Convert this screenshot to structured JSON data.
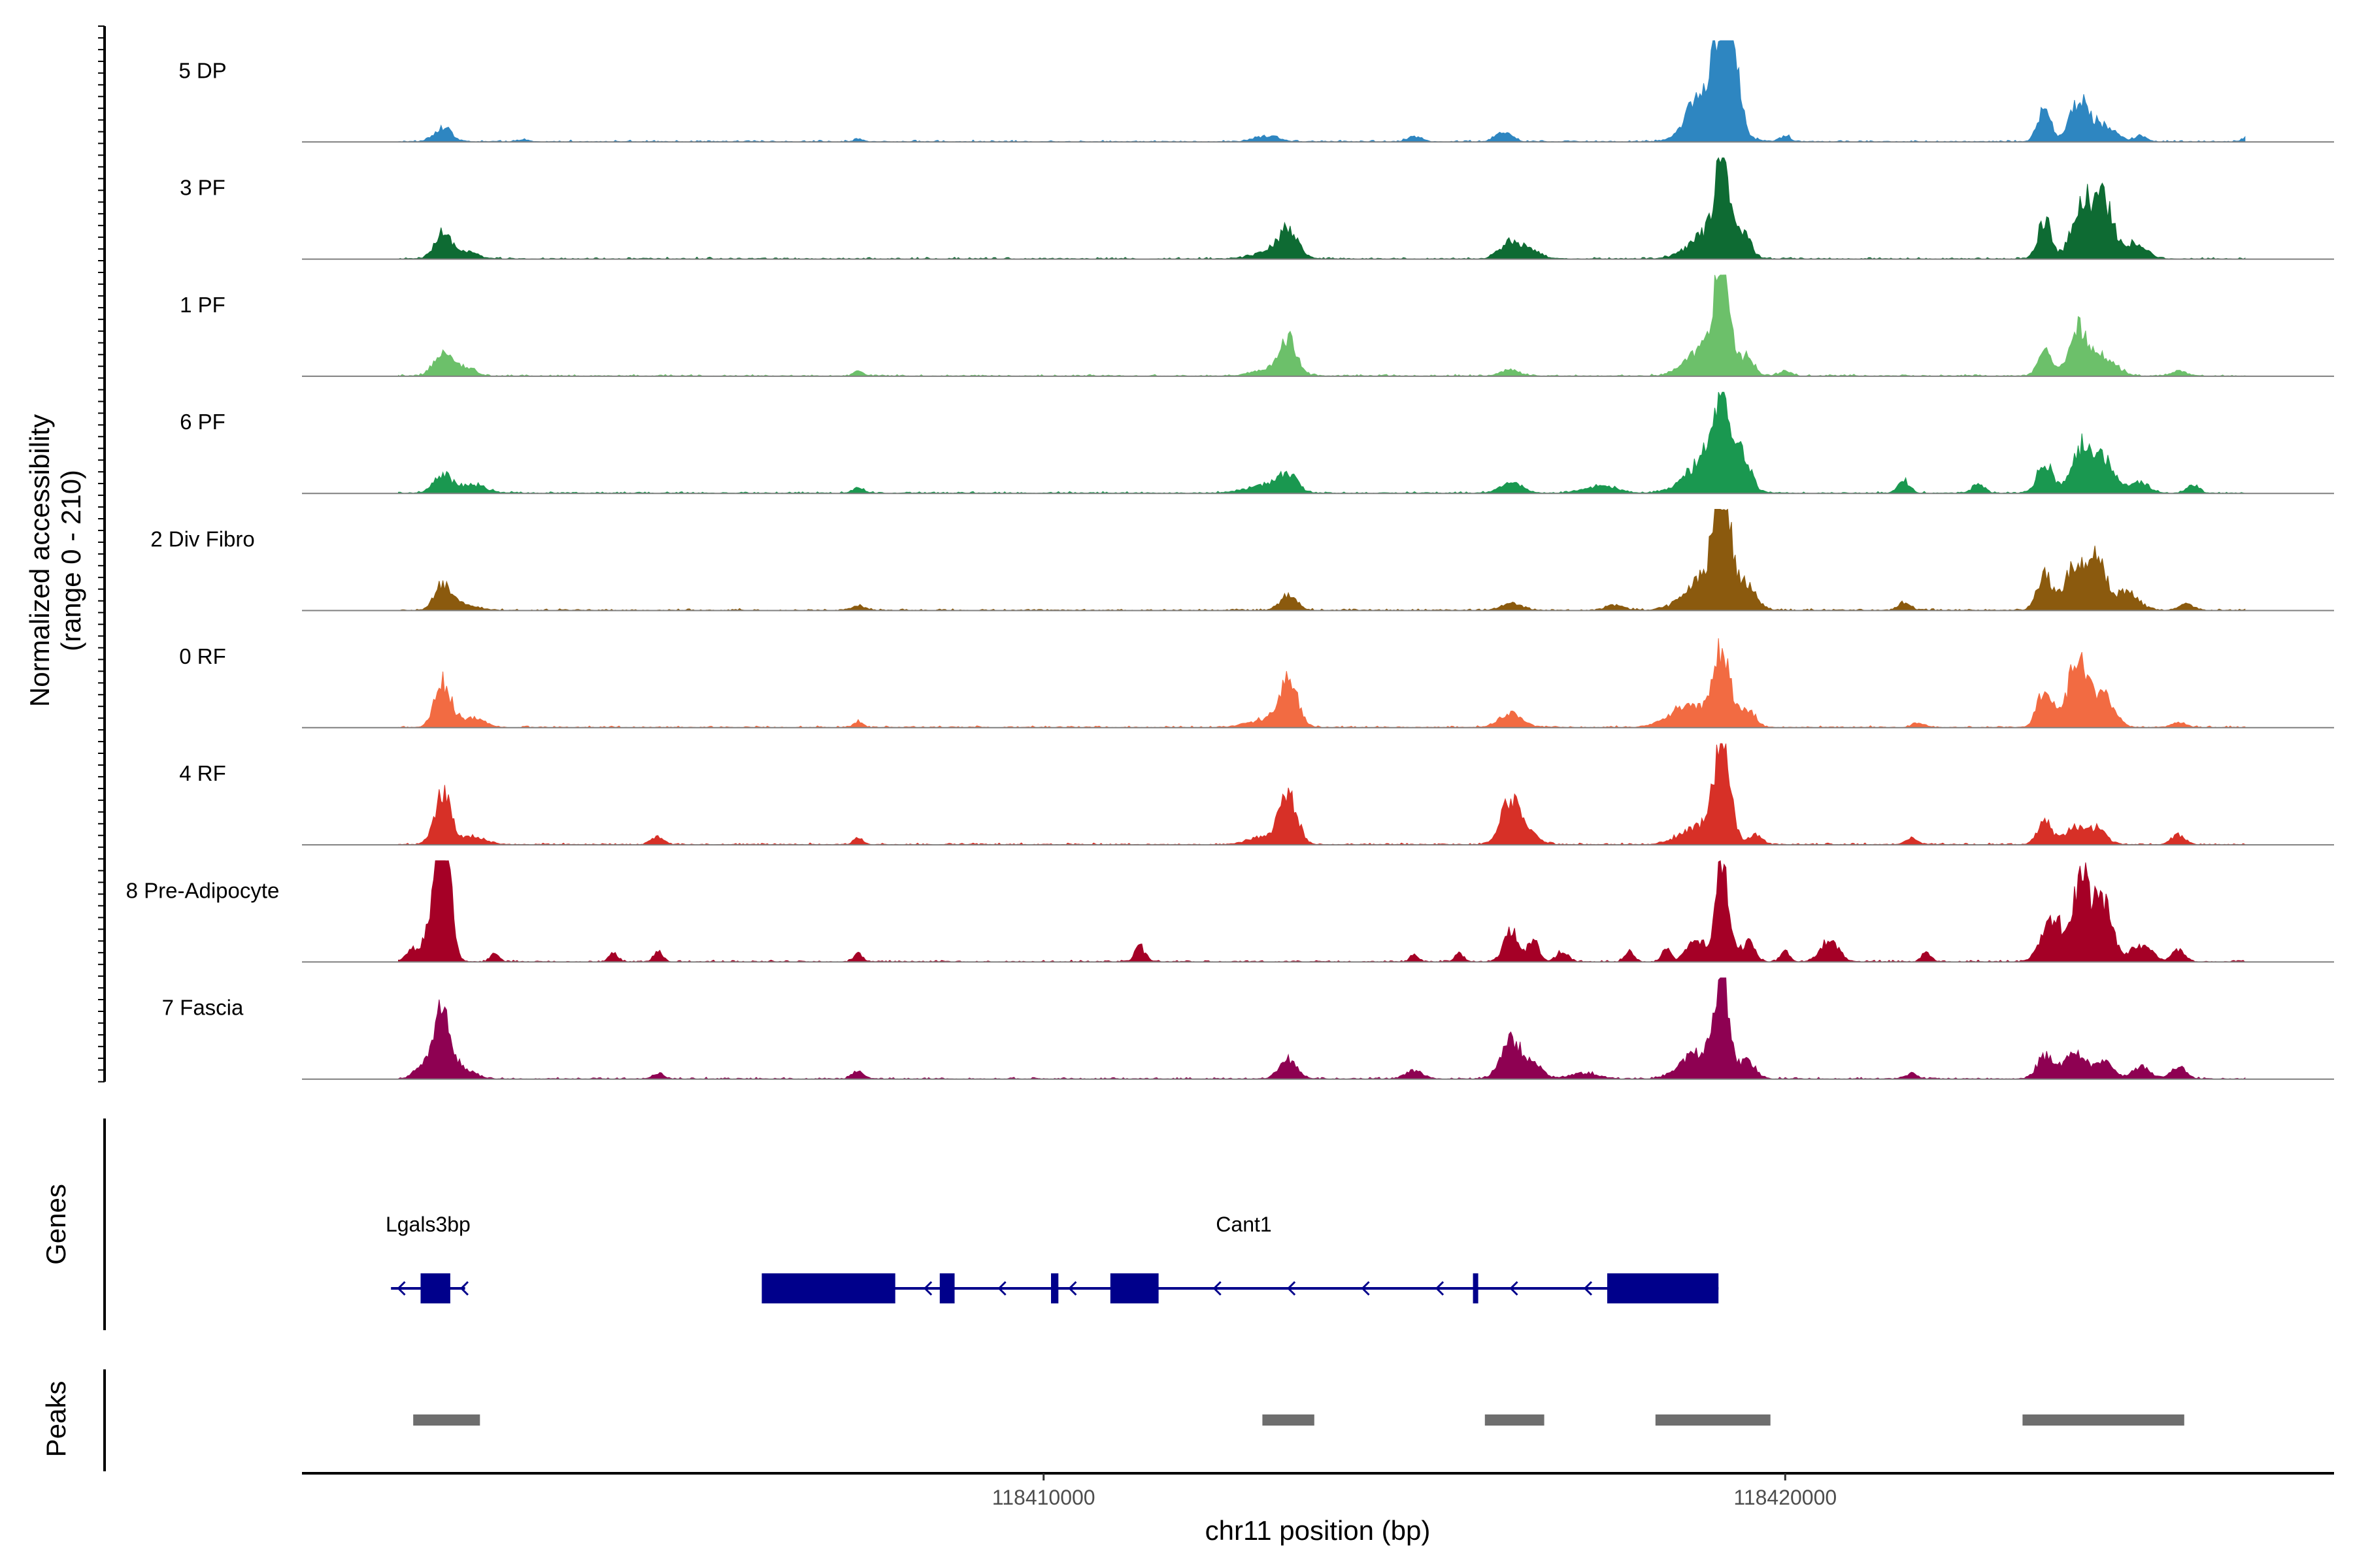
{
  "chart_data": {
    "type": "area",
    "title": "",
    "ylabel_line1": "Normalized accessibility",
    "ylabel_line2": "(range 0 - 210)",
    "y_range": [
      0,
      210
    ],
    "xlabel": "chr11 position (bp)",
    "x_range": [
      118400000,
      118427400
    ],
    "x_ticks": [
      118410000,
      118420000
    ],
    "x_tick_labels": [
      "118410000",
      "118420000"
    ],
    "genes_label": "Genes",
    "peaks_label": "Peaks",
    "tracks": [
      {
        "name": "5 DP",
        "color": "#2E86C1",
        "peaks": [
          [
            118401900,
            120,
            0.14
          ],
          [
            118407500,
            60,
            0.03
          ],
          [
            118403000,
            70,
            0.02
          ],
          [
            118413000,
            160,
            0.06
          ],
          [
            118415000,
            100,
            0.05
          ],
          [
            118416200,
            110,
            0.09
          ],
          [
            118418800,
            120,
            0.2
          ],
          [
            118419150,
            100,
            0.95
          ],
          [
            118419300,
            90,
            0.6
          ],
          [
            118419000,
            260,
            0.42
          ],
          [
            118420000,
            70,
            0.06
          ],
          [
            118423500,
            90,
            0.33
          ],
          [
            118423950,
            110,
            0.38
          ],
          [
            118424250,
            180,
            0.18
          ],
          [
            118424800,
            80,
            0.06
          ],
          [
            118426200,
            60,
            0.03
          ]
        ]
      },
      {
        "name": "3 PF",
        "color": "#0E6B33",
        "peaks": [
          [
            118401900,
            110,
            0.25
          ],
          [
            118402200,
            160,
            0.07
          ],
          [
            118413300,
            120,
            0.25
          ],
          [
            118413100,
            250,
            0.08
          ],
          [
            118416300,
            140,
            0.18
          ],
          [
            118416600,
            120,
            0.08
          ],
          [
            118419150,
            90,
            0.88
          ],
          [
            118419000,
            260,
            0.28
          ],
          [
            118419450,
            90,
            0.2
          ],
          [
            118423500,
            90,
            0.4
          ],
          [
            118424000,
            130,
            0.62
          ],
          [
            118424300,
            120,
            0.55
          ],
          [
            118424700,
            160,
            0.15
          ],
          [
            118426500,
            60,
            0.04
          ]
        ]
      },
      {
        "name": "1 PF",
        "color": "#6CC06A",
        "peaks": [
          [
            118401900,
            110,
            0.27
          ],
          [
            118402200,
            120,
            0.1
          ],
          [
            118407500,
            60,
            0.05
          ],
          [
            118413300,
            110,
            0.33
          ],
          [
            118413100,
            230,
            0.08
          ],
          [
            118416300,
            120,
            0.06
          ],
          [
            118419150,
            90,
            1.0
          ],
          [
            118419000,
            260,
            0.35
          ],
          [
            118419500,
            80,
            0.15
          ],
          [
            118420000,
            80,
            0.05
          ],
          [
            118423500,
            90,
            0.25
          ],
          [
            118423950,
            120,
            0.5
          ],
          [
            118424300,
            160,
            0.2
          ],
          [
            118425300,
            100,
            0.05
          ]
        ]
      },
      {
        "name": "6 PF",
        "color": "#1A9850",
        "peaks": [
          [
            118401900,
            120,
            0.18
          ],
          [
            118402300,
            180,
            0.08
          ],
          [
            118407500,
            80,
            0.05
          ],
          [
            118413300,
            120,
            0.16
          ],
          [
            118413000,
            260,
            0.08
          ],
          [
            118416300,
            150,
            0.1
          ],
          [
            118417500,
            220,
            0.07
          ],
          [
            118419150,
            100,
            0.85
          ],
          [
            118419000,
            280,
            0.4
          ],
          [
            118419450,
            90,
            0.28
          ],
          [
            118421600,
            80,
            0.12
          ],
          [
            118422600,
            80,
            0.09
          ],
          [
            118423500,
            100,
            0.32
          ],
          [
            118424000,
            140,
            0.45
          ],
          [
            118424300,
            160,
            0.3
          ],
          [
            118424800,
            120,
            0.1
          ],
          [
            118425500,
            80,
            0.08
          ]
        ]
      },
      {
        "name": "2 Div Fibro",
        "color": "#8B5A0E",
        "peaks": [
          [
            118401900,
            110,
            0.25
          ],
          [
            118402200,
            160,
            0.06
          ],
          [
            118407500,
            100,
            0.04
          ],
          [
            118413300,
            110,
            0.15
          ],
          [
            118416300,
            140,
            0.07
          ],
          [
            118417700,
            120,
            0.05
          ],
          [
            118419150,
            100,
            1.0
          ],
          [
            118419000,
            280,
            0.4
          ],
          [
            118419500,
            110,
            0.18
          ],
          [
            118421600,
            80,
            0.08
          ],
          [
            118423500,
            100,
            0.38
          ],
          [
            118423900,
            120,
            0.48
          ],
          [
            118424200,
            120,
            0.52
          ],
          [
            118424600,
            160,
            0.18
          ],
          [
            118425400,
            100,
            0.06
          ]
        ]
      },
      {
        "name": "0 RF",
        "color": "#F26B42",
        "peaks": [
          [
            118401900,
            110,
            0.45
          ],
          [
            118402300,
            160,
            0.1
          ],
          [
            118407500,
            60,
            0.06
          ],
          [
            118413300,
            120,
            0.47
          ],
          [
            118413000,
            240,
            0.08
          ],
          [
            118416300,
            160,
            0.14
          ],
          [
            118418700,
            260,
            0.22
          ],
          [
            118419150,
            110,
            0.77
          ],
          [
            118419500,
            100,
            0.18
          ],
          [
            118421800,
            80,
            0.05
          ],
          [
            118423500,
            100,
            0.4
          ],
          [
            118423950,
            130,
            0.72
          ],
          [
            118424300,
            140,
            0.3
          ],
          [
            118425300,
            100,
            0.05
          ]
        ]
      },
      {
        "name": "4 RF",
        "color": "#D73027",
        "peaks": [
          [
            118401900,
            110,
            0.5
          ],
          [
            118402300,
            160,
            0.08
          ],
          [
            118404800,
            80,
            0.09
          ],
          [
            118407500,
            60,
            0.07
          ],
          [
            118413300,
            120,
            0.45
          ],
          [
            118413000,
            220,
            0.08
          ],
          [
            118416300,
            130,
            0.45
          ],
          [
            118416600,
            120,
            0.08
          ],
          [
            118419150,
            110,
            0.95
          ],
          [
            118418800,
            220,
            0.18
          ],
          [
            118419600,
            90,
            0.1
          ],
          [
            118421700,
            80,
            0.06
          ],
          [
            118423500,
            100,
            0.22
          ],
          [
            118423900,
            120,
            0.18
          ],
          [
            118424200,
            120,
            0.16
          ],
          [
            118425300,
            90,
            0.1
          ]
        ]
      },
      {
        "name": "8 Pre-Adipocyte",
        "color": "#A50026",
        "peaks": [
          [
            118401850,
            80,
            1.0
          ],
          [
            118401950,
            80,
            0.85
          ],
          [
            118401700,
            60,
            0.3
          ],
          [
            118401500,
            80,
            0.15
          ],
          [
            118402600,
            60,
            0.08
          ],
          [
            118404200,
            60,
            0.08
          ],
          [
            118404800,
            60,
            0.1
          ],
          [
            118407500,
            60,
            0.08
          ],
          [
            118411300,
            70,
            0.15
          ],
          [
            118415000,
            60,
            0.07
          ],
          [
            118415600,
            60,
            0.08
          ],
          [
            118416300,
            100,
            0.3
          ],
          [
            118416600,
            80,
            0.2
          ],
          [
            118417000,
            80,
            0.1
          ],
          [
            118417900,
            60,
            0.1
          ],
          [
            118418400,
            60,
            0.12
          ],
          [
            118419150,
            90,
            0.93
          ],
          [
            118418800,
            120,
            0.22
          ],
          [
            118419500,
            90,
            0.2
          ],
          [
            118420000,
            60,
            0.1
          ],
          [
            118420600,
            120,
            0.22
          ],
          [
            118421900,
            60,
            0.09
          ],
          [
            118423600,
            140,
            0.45
          ],
          [
            118424000,
            120,
            0.8
          ],
          [
            118424300,
            120,
            0.6
          ],
          [
            118424800,
            140,
            0.17
          ],
          [
            118425300,
            80,
            0.12
          ]
        ]
      },
      {
        "name": "7 Fascia",
        "color": "#8E0152",
        "peaks": [
          [
            118401900,
            110,
            0.6
          ],
          [
            118401700,
            140,
            0.18
          ],
          [
            118402200,
            140,
            0.1
          ],
          [
            118404800,
            80,
            0.05
          ],
          [
            118407500,
            80,
            0.07
          ],
          [
            118413300,
            120,
            0.2
          ],
          [
            118415000,
            120,
            0.08
          ],
          [
            118416300,
            130,
            0.4
          ],
          [
            118416600,
            120,
            0.15
          ],
          [
            118417300,
            180,
            0.06
          ],
          [
            118419150,
            100,
            1.0
          ],
          [
            118418800,
            220,
            0.25
          ],
          [
            118419500,
            100,
            0.18
          ],
          [
            118421700,
            80,
            0.05
          ],
          [
            118423500,
            100,
            0.24
          ],
          [
            118423900,
            140,
            0.28
          ],
          [
            118424300,
            120,
            0.18
          ],
          [
            118424800,
            120,
            0.12
          ],
          [
            118425300,
            100,
            0.12
          ]
        ]
      }
    ],
    "genes": [
      {
        "name": "Lgals3bp",
        "strand": "-",
        "start": 118401200,
        "end": 118402200,
        "label_pos": 118401700,
        "exons": [
          [
            118401600,
            118402000
          ]
        ],
        "arrows": [
          118401300,
          118402150
        ]
      },
      {
        "name": "Cant1",
        "strand": "-",
        "start": 118406200,
        "end": 118419100,
        "label_pos": 118412700,
        "exons": [
          [
            118406200,
            118408000
          ],
          [
            118408600,
            118408800
          ],
          [
            118410100,
            118410200
          ],
          [
            118410900,
            118411550
          ],
          [
            118415800,
            118415850
          ],
          [
            118417600,
            118419100
          ]
        ],
        "arrows": [
          118408400,
          118409400,
          118410350,
          118412300,
          118413300,
          118414300,
          118415300,
          118416300,
          118417300
        ]
      }
    ],
    "peak_regions": [
      [
        118401500,
        118402400
      ],
      [
        118412950,
        118413650
      ],
      [
        118415950,
        118416750
      ],
      [
        118418250,
        118419800
      ],
      [
        118423200,
        118425380
      ]
    ],
    "gene_color": "#00008B",
    "peak_color": "#6E6E6E"
  }
}
